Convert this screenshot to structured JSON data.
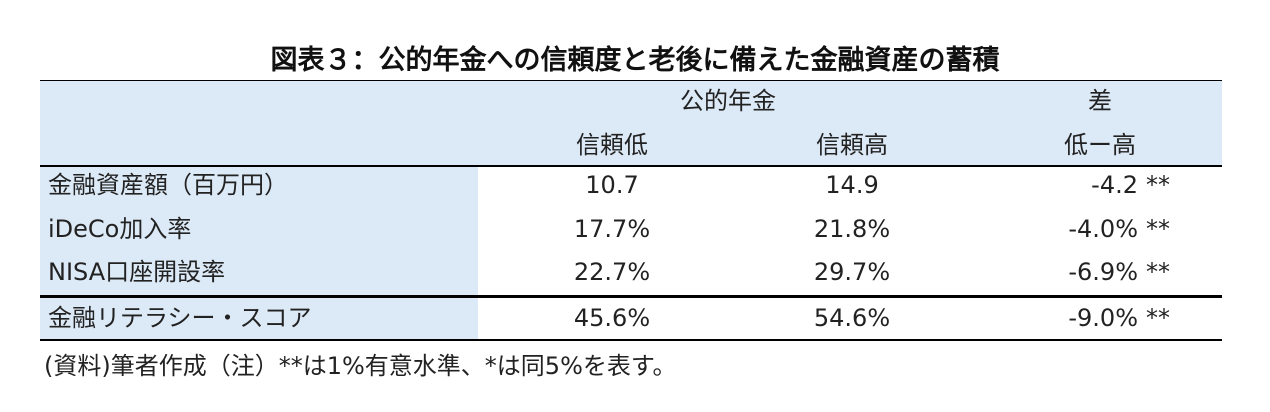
{
  "header": {
    "title": "図表３：公的年金への信頼度と老後に備えた金融資産の蓄積"
  },
  "table": {
    "group_headers": [
      "公的年金",
      "差"
    ],
    "columns": [
      "信頼低",
      "信頼高",
      "低ー高"
    ],
    "rows": [
      [
        "金融資産額（百万円）",
        "10.7",
        "14.9",
        "-4.2",
        "**"
      ],
      [
        "iDeCo加入率",
        "17.7%",
        "21.8%",
        "-4.0%",
        "**"
      ],
      [
        "NISA口座開設率",
        "22.7%",
        "29.7%",
        "-6.9%",
        "**"
      ],
      [
        "金融リテラシー・スコア",
        "45.6%",
        "54.6%",
        "-9.0%",
        "**"
      ]
    ]
  },
  "footer": {
    "note": "(資料)筆者作成（注）**は1%有意水準、*は同5%を表す。"
  }
}
